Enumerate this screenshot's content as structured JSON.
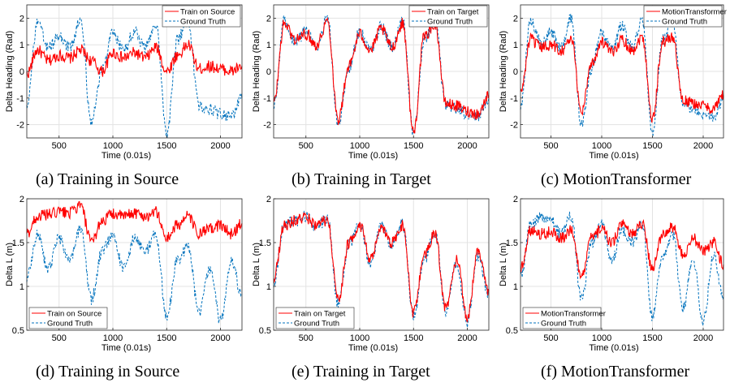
{
  "colors": {
    "predicted": "#ff0000",
    "ground_truth": "#0072bd",
    "grid": "#e3e3e3",
    "axis": "#262626"
  },
  "chart_data": [
    {
      "id": "a",
      "type": "line",
      "caption": "(a)  Training in Source",
      "xlabel": "Time (0.01s)",
      "ylabel": "Delta Heading (Rad)",
      "xlim": [
        200,
        2200
      ],
      "ylim": [
        -2.5,
        2.5
      ],
      "xticks": [
        500,
        1000,
        1500,
        2000
      ],
      "xticklabels": [
        "500",
        "1000",
        "1500",
        "2000"
      ],
      "yticks": [
        -2,
        -1,
        0,
        1,
        2
      ],
      "yticklabels": [
        "-2",
        "-1",
        "0",
        "1",
        "2"
      ],
      "grid": true,
      "legend_position": "top-right",
      "series": [
        {
          "name": "Train on Source",
          "style": "solid",
          "color": "#ff0000",
          "x": [
            200,
            300,
            400,
            500,
            600,
            700,
            800,
            900,
            1000,
            1100,
            1200,
            1300,
            1400,
            1500,
            1600,
            1700,
            1800,
            1900,
            2000,
            2100,
            2200
          ],
          "y": [
            -0.1,
            0.8,
            0.4,
            0.6,
            0.5,
            0.8,
            0.4,
            0.0,
            0.7,
            0.5,
            0.7,
            0.5,
            0.9,
            0.0,
            0.6,
            1.0,
            0.1,
            0.2,
            0.1,
            0.0,
            0.2
          ]
        },
        {
          "name": "Ground Truth",
          "style": "dashed",
          "color": "#0072bd",
          "x": [
            200,
            300,
            400,
            500,
            600,
            700,
            800,
            900,
            1000,
            1100,
            1200,
            1300,
            1400,
            1500,
            1600,
            1700,
            1800,
            1900,
            2000,
            2100,
            2200
          ],
          "y": [
            -1.2,
            1.8,
            0.9,
            1.3,
            0.9,
            1.9,
            -1.9,
            0.1,
            1.4,
            0.8,
            1.5,
            0.9,
            1.8,
            -2.4,
            1.2,
            1.9,
            -1.3,
            -1.4,
            -1.6,
            -1.7,
            -1.0
          ]
        }
      ]
    },
    {
      "id": "b",
      "type": "line",
      "caption": "(b)  Training in Target",
      "xlabel": "Time (0.01s)",
      "ylabel": "Delta Heading (Rad)",
      "xlim": [
        200,
        2200
      ],
      "ylim": [
        -2.5,
        2.5
      ],
      "xticks": [
        500,
        1000,
        1500,
        2000
      ],
      "xticklabels": [
        "500",
        "1000",
        "1500",
        "2000"
      ],
      "yticks": [
        -2,
        -1,
        0,
        1,
        2
      ],
      "yticklabels": [
        "-2",
        "-1",
        "0",
        "1",
        "2"
      ],
      "grid": true,
      "legend_position": "top-right",
      "series": [
        {
          "name": "Train on Target",
          "style": "solid",
          "color": "#ff0000",
          "x": [
            200,
            300,
            400,
            500,
            600,
            700,
            800,
            900,
            1000,
            1100,
            1200,
            1300,
            1400,
            1500,
            1600,
            1700,
            1800,
            1900,
            2000,
            2100,
            2200
          ],
          "y": [
            -1.2,
            1.8,
            1.2,
            1.4,
            1.0,
            1.9,
            -1.8,
            0.2,
            1.4,
            0.8,
            1.6,
            0.9,
            1.8,
            -2.3,
            1.3,
            1.8,
            -1.2,
            -1.3,
            -1.5,
            -1.6,
            -0.9
          ]
        },
        {
          "name": "Ground Truth",
          "style": "dashed",
          "color": "#0072bd",
          "x": [
            200,
            300,
            400,
            500,
            600,
            700,
            800,
            900,
            1000,
            1100,
            1200,
            1300,
            1400,
            1500,
            1600,
            1700,
            1800,
            1900,
            2000,
            2100,
            2200
          ],
          "y": [
            -1.3,
            1.9,
            1.1,
            1.5,
            0.9,
            2.0,
            -2.0,
            0.1,
            1.5,
            0.8,
            1.7,
            0.9,
            1.9,
            -2.4,
            1.2,
            1.9,
            -1.3,
            -1.4,
            -1.6,
            -1.7,
            -1.0
          ]
        }
      ]
    },
    {
      "id": "c",
      "type": "line",
      "caption": "(c)  MotionTransformer",
      "xlabel": "Time (0.01s)",
      "ylabel": "Delta Heading (Rad)",
      "xlim": [
        200,
        2200
      ],
      "ylim": [
        -2.5,
        2.5
      ],
      "xticks": [
        500,
        1000,
        1500,
        2000
      ],
      "xticklabels": [
        "500",
        "1000",
        "1500",
        "2000"
      ],
      "yticks": [
        -2,
        -1,
        0,
        1,
        2
      ],
      "yticklabels": [
        "-2",
        "-1",
        "0",
        "1",
        "2"
      ],
      "grid": true,
      "legend_position": "top-right",
      "series": [
        {
          "name": "MotionTransformer",
          "style": "solid",
          "color": "#ff0000",
          "x": [
            200,
            300,
            400,
            500,
            600,
            700,
            800,
            900,
            1000,
            1100,
            1200,
            1300,
            1400,
            1500,
            1600,
            1700,
            1800,
            1900,
            2000,
            2100,
            2200
          ],
          "y": [
            -0.8,
            1.2,
            0.9,
            1.0,
            0.8,
            1.2,
            -1.5,
            0.3,
            1.1,
            0.7,
            1.2,
            0.8,
            1.3,
            -1.8,
            1.1,
            1.3,
            -1.1,
            -1.2,
            -1.3,
            -1.4,
            -0.9
          ]
        },
        {
          "name": "Ground Truth",
          "style": "dashed",
          "color": "#0072bd",
          "x": [
            200,
            300,
            400,
            500,
            600,
            700,
            800,
            900,
            1000,
            1100,
            1200,
            1300,
            1400,
            1500,
            1600,
            1700,
            1800,
            1900,
            2000,
            2100,
            2200
          ],
          "y": [
            -1.3,
            1.9,
            1.1,
            1.5,
            0.9,
            2.0,
            -2.0,
            0.1,
            1.5,
            0.8,
            1.7,
            0.9,
            1.9,
            -2.4,
            1.2,
            1.9,
            -1.3,
            -1.4,
            -1.6,
            -1.7,
            -1.0
          ]
        }
      ]
    },
    {
      "id": "d",
      "type": "line",
      "caption": "(d)  Training in Source",
      "xlabel": "Time (0.01s)",
      "ylabel": "Delta L (m)",
      "xlim": [
        200,
        2200
      ],
      "ylim": [
        0.5,
        2
      ],
      "xticks": [
        500,
        1000,
        1500,
        2000
      ],
      "xticklabels": [
        "500",
        "1000",
        "1500",
        "2000"
      ],
      "yticks": [
        0.5,
        1,
        1.5,
        2
      ],
      "yticklabels": [
        "0.5",
        "1",
        "1.5",
        "2"
      ],
      "grid": true,
      "legend_position": "bottom-left",
      "series": [
        {
          "name": "Train on Source",
          "style": "solid",
          "color": "#ff0000",
          "x": [
            200,
            300,
            400,
            500,
            600,
            700,
            800,
            900,
            1000,
            1100,
            1200,
            1300,
            1400,
            1500,
            1600,
            1700,
            1800,
            1900,
            2000,
            2100,
            2200
          ],
          "y": [
            1.6,
            1.8,
            1.82,
            1.85,
            1.84,
            1.92,
            1.5,
            1.75,
            1.83,
            1.8,
            1.84,
            1.8,
            1.85,
            1.55,
            1.7,
            1.8,
            1.6,
            1.65,
            1.7,
            1.6,
            1.72
          ]
        },
        {
          "name": "Ground Truth",
          "style": "dashed",
          "color": "#0072bd",
          "x": [
            200,
            300,
            400,
            500,
            600,
            700,
            800,
            900,
            1000,
            1100,
            1200,
            1300,
            1400,
            1500,
            1600,
            1700,
            1800,
            1900,
            2000,
            2100,
            2200
          ],
          "y": [
            1.1,
            1.6,
            1.2,
            1.55,
            1.3,
            1.65,
            0.85,
            1.4,
            1.6,
            1.2,
            1.55,
            1.4,
            1.6,
            0.65,
            1.3,
            1.45,
            0.7,
            1.2,
            0.6,
            1.3,
            0.9
          ]
        }
      ]
    },
    {
      "id": "e",
      "type": "line",
      "caption": "(e)  Training in Target",
      "xlabel": "Time (0.01s)",
      "ylabel": "Delta L (m)",
      "xlim": [
        200,
        2200
      ],
      "ylim": [
        0.5,
        2
      ],
      "xticks": [
        500,
        1000,
        1500,
        2000
      ],
      "xticklabels": [
        "500",
        "1000",
        "1500",
        "2000"
      ],
      "yticks": [
        0.5,
        1,
        1.5,
        2
      ],
      "yticklabels": [
        "0.5",
        "1",
        "1.5",
        "2"
      ],
      "grid": true,
      "legend_position": "bottom-left",
      "series": [
        {
          "name": "Train on Target",
          "style": "solid",
          "color": "#ff0000",
          "x": [
            200,
            300,
            400,
            500,
            600,
            700,
            800,
            900,
            1000,
            1100,
            1200,
            1300,
            1400,
            1500,
            1600,
            1700,
            1800,
            1900,
            2000,
            2100,
            2200
          ],
          "y": [
            1.1,
            1.7,
            1.75,
            1.78,
            1.7,
            1.75,
            0.85,
            1.5,
            1.7,
            1.3,
            1.65,
            1.5,
            1.7,
            0.7,
            1.35,
            1.6,
            0.75,
            1.3,
            0.65,
            1.4,
            0.95
          ]
        },
        {
          "name": "Ground Truth",
          "style": "dashed",
          "color": "#0072bd",
          "x": [
            200,
            300,
            400,
            500,
            600,
            700,
            800,
            900,
            1000,
            1100,
            1200,
            1300,
            1400,
            1500,
            1600,
            1700,
            1800,
            1900,
            2000,
            2100,
            2200
          ],
          "y": [
            1.05,
            1.72,
            1.74,
            1.8,
            1.68,
            1.78,
            0.8,
            1.48,
            1.72,
            1.25,
            1.68,
            1.48,
            1.72,
            0.65,
            1.3,
            1.62,
            0.7,
            1.25,
            0.6,
            1.35,
            0.9
          ]
        }
      ]
    },
    {
      "id": "f",
      "type": "line",
      "caption": "(f)  MotionTransformer",
      "xlabel": "Time (0.01s)",
      "ylabel": "Delta L (m)",
      "xlim": [
        200,
        2200
      ],
      "ylim": [
        0.5,
        2
      ],
      "xticks": [
        500,
        1000,
        1500,
        2000
      ],
      "xticklabels": [
        "500",
        "1000",
        "1500",
        "2000"
      ],
      "yticks": [
        0.5,
        1,
        1.5,
        2
      ],
      "yticklabels": [
        "0.5",
        "1",
        "1.5",
        "2"
      ],
      "grid": true,
      "legend_position": "bottom-left",
      "series": [
        {
          "name": "MotionTransformer",
          "style": "solid",
          "color": "#ff0000",
          "x": [
            200,
            300,
            400,
            500,
            600,
            700,
            800,
            900,
            1000,
            1100,
            1200,
            1300,
            1400,
            1500,
            1600,
            1700,
            1800,
            1900,
            2000,
            2100,
            2200
          ],
          "y": [
            1.2,
            1.65,
            1.6,
            1.62,
            1.55,
            1.65,
            1.1,
            1.55,
            1.65,
            1.5,
            1.7,
            1.6,
            1.72,
            1.2,
            1.6,
            1.68,
            1.35,
            1.55,
            1.4,
            1.5,
            1.25
          ]
        },
        {
          "name": "Ground Truth",
          "style": "dashed",
          "color": "#0072bd",
          "x": [
            200,
            300,
            400,
            500,
            600,
            700,
            800,
            900,
            1000,
            1100,
            1200,
            1300,
            1400,
            1500,
            1600,
            1700,
            1800,
            1900,
            2000,
            2100,
            2200
          ],
          "y": [
            1.1,
            1.7,
            1.8,
            1.75,
            1.6,
            1.8,
            0.85,
            1.5,
            1.7,
            1.3,
            1.65,
            1.5,
            1.7,
            0.65,
            1.35,
            1.6,
            0.75,
            1.3,
            0.6,
            1.35,
            0.9
          ]
        }
      ]
    }
  ]
}
